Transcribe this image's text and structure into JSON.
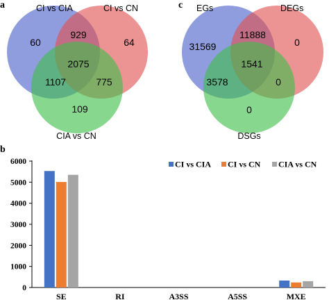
{
  "panels": {
    "a": "a",
    "b": "b",
    "c": "c"
  },
  "venn_a": {
    "sets": [
      "CI vs CIA",
      "CI vs CN",
      "CIA vs CN"
    ],
    "colors": [
      "#4a5fc9",
      "#e05050",
      "#3fbf4a"
    ],
    "regions": {
      "only_1": "60",
      "only_2": "64",
      "only_3": "109",
      "r12": "929",
      "r13": "1107",
      "r23": "775",
      "r123": "2075"
    }
  },
  "venn_c": {
    "sets": [
      "EGs",
      "DEGs",
      "DSGs"
    ],
    "colors": [
      "#4a5fc9",
      "#e05050",
      "#3fbf4a"
    ],
    "regions": {
      "only_1": "31569",
      "only_2": "0",
      "only_3": "0",
      "r12": "11888",
      "r13": "3578",
      "r23": "0",
      "r123": "1541"
    }
  },
  "chart_data": {
    "type": "bar",
    "categories": [
      "SE",
      "RI",
      "A3SS",
      "A5SS",
      "MXE"
    ],
    "series": [
      {
        "name": "CI vs CIA",
        "values": [
          5530,
          0,
          0,
          0,
          330
        ],
        "color": "#4472c4"
      },
      {
        "name": "CI vs CN",
        "values": [
          5010,
          0,
          0,
          0,
          240
        ],
        "color": "#ed7d31"
      },
      {
        "name": "CIA vs CN",
        "values": [
          5350,
          0,
          0,
          0,
          300
        ],
        "color": "#a5a5a5"
      }
    ],
    "ylim": [
      0,
      6000
    ],
    "yticks": [
      "0",
      "1000",
      "2000",
      "3000",
      "4000",
      "5000",
      "6000"
    ],
    "legend": "top-right",
    "grid": false
  }
}
